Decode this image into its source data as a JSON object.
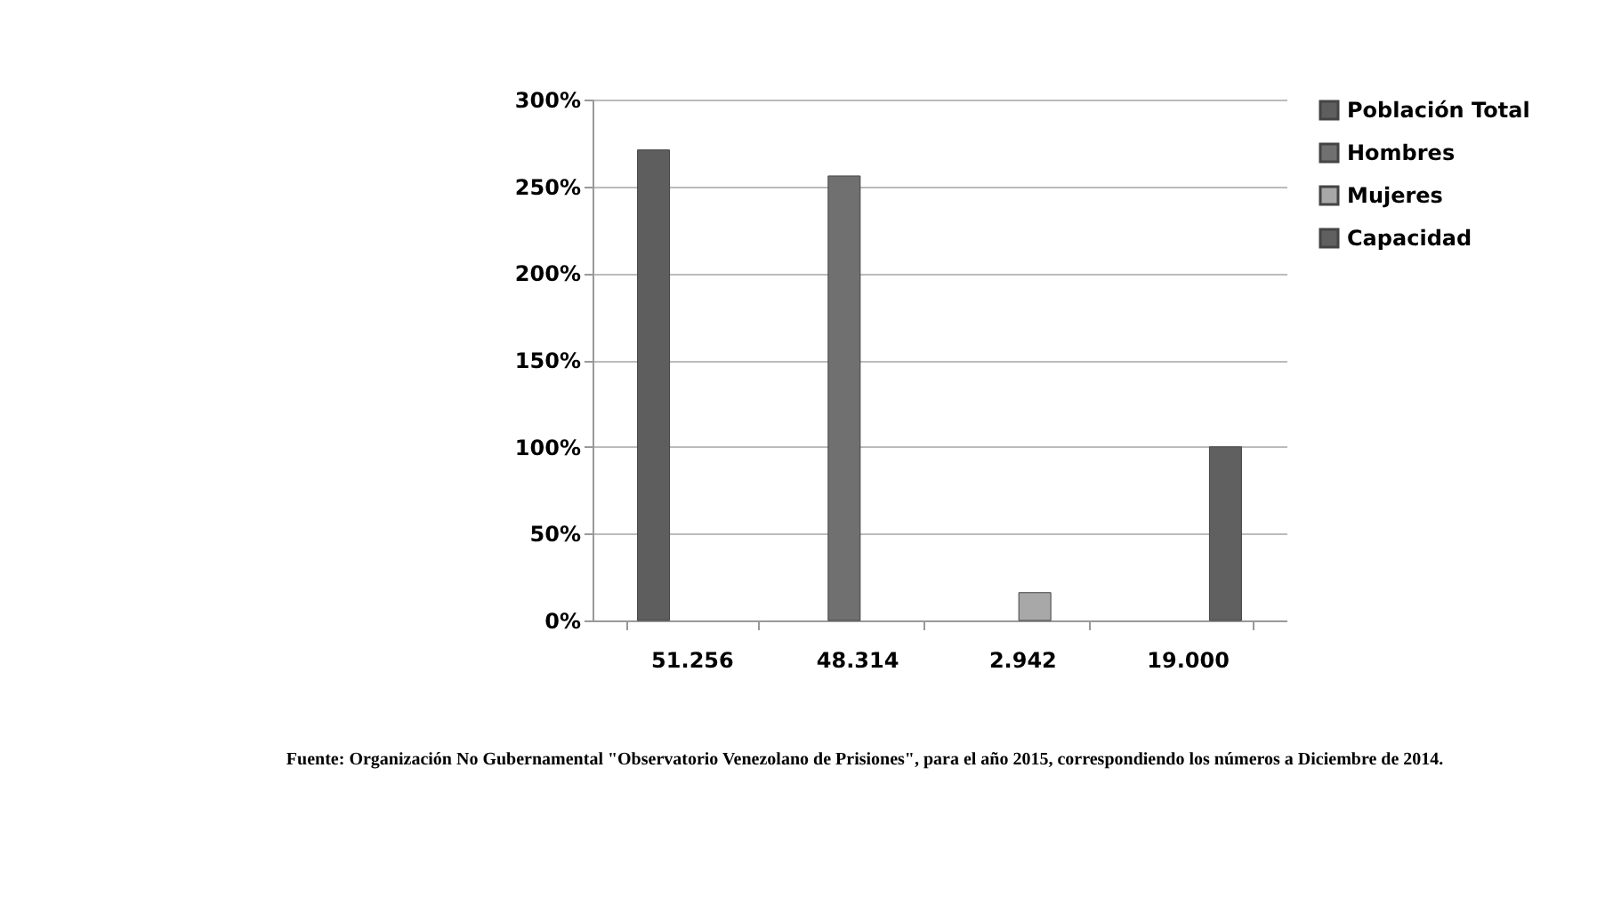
{
  "chart_data": {
    "type": "bar",
    "categories": [
      "51.256",
      "48.314",
      "2.942",
      "19.000"
    ],
    "series": [
      {
        "name": "Población Total",
        "color": "#5e5e5e",
        "values": [
          271,
          null,
          null,
          null
        ]
      },
      {
        "name": "Hombres",
        "color": "#707070",
        "values": [
          null,
          256,
          null,
          null
        ]
      },
      {
        "name": "Mujeres",
        "color": "#a8a8a8",
        "values": [
          null,
          null,
          16,
          null
        ]
      },
      {
        "name": "Capacidad",
        "color": "#606060",
        "values": [
          null,
          null,
          null,
          100
        ]
      }
    ],
    "ylim": [
      0,
      300
    ],
    "yticks": [
      {
        "value": 0,
        "label": "0%"
      },
      {
        "value": 50,
        "label": "50%"
      },
      {
        "value": 100,
        "label": "100%"
      },
      {
        "value": 150,
        "label": "150%"
      },
      {
        "value": 200,
        "label": "200%"
      },
      {
        "value": 250,
        "label": "250%"
      },
      {
        "value": 300,
        "label": "300%"
      }
    ],
    "grid": "y",
    "legend": "right",
    "annotations": [
      "Fuente: Organización No Gubernamental \"Observatorio Venezolano de Prisiones\", para el año 2015, correspondiendo los números a Diciembre de 2014."
    ]
  }
}
